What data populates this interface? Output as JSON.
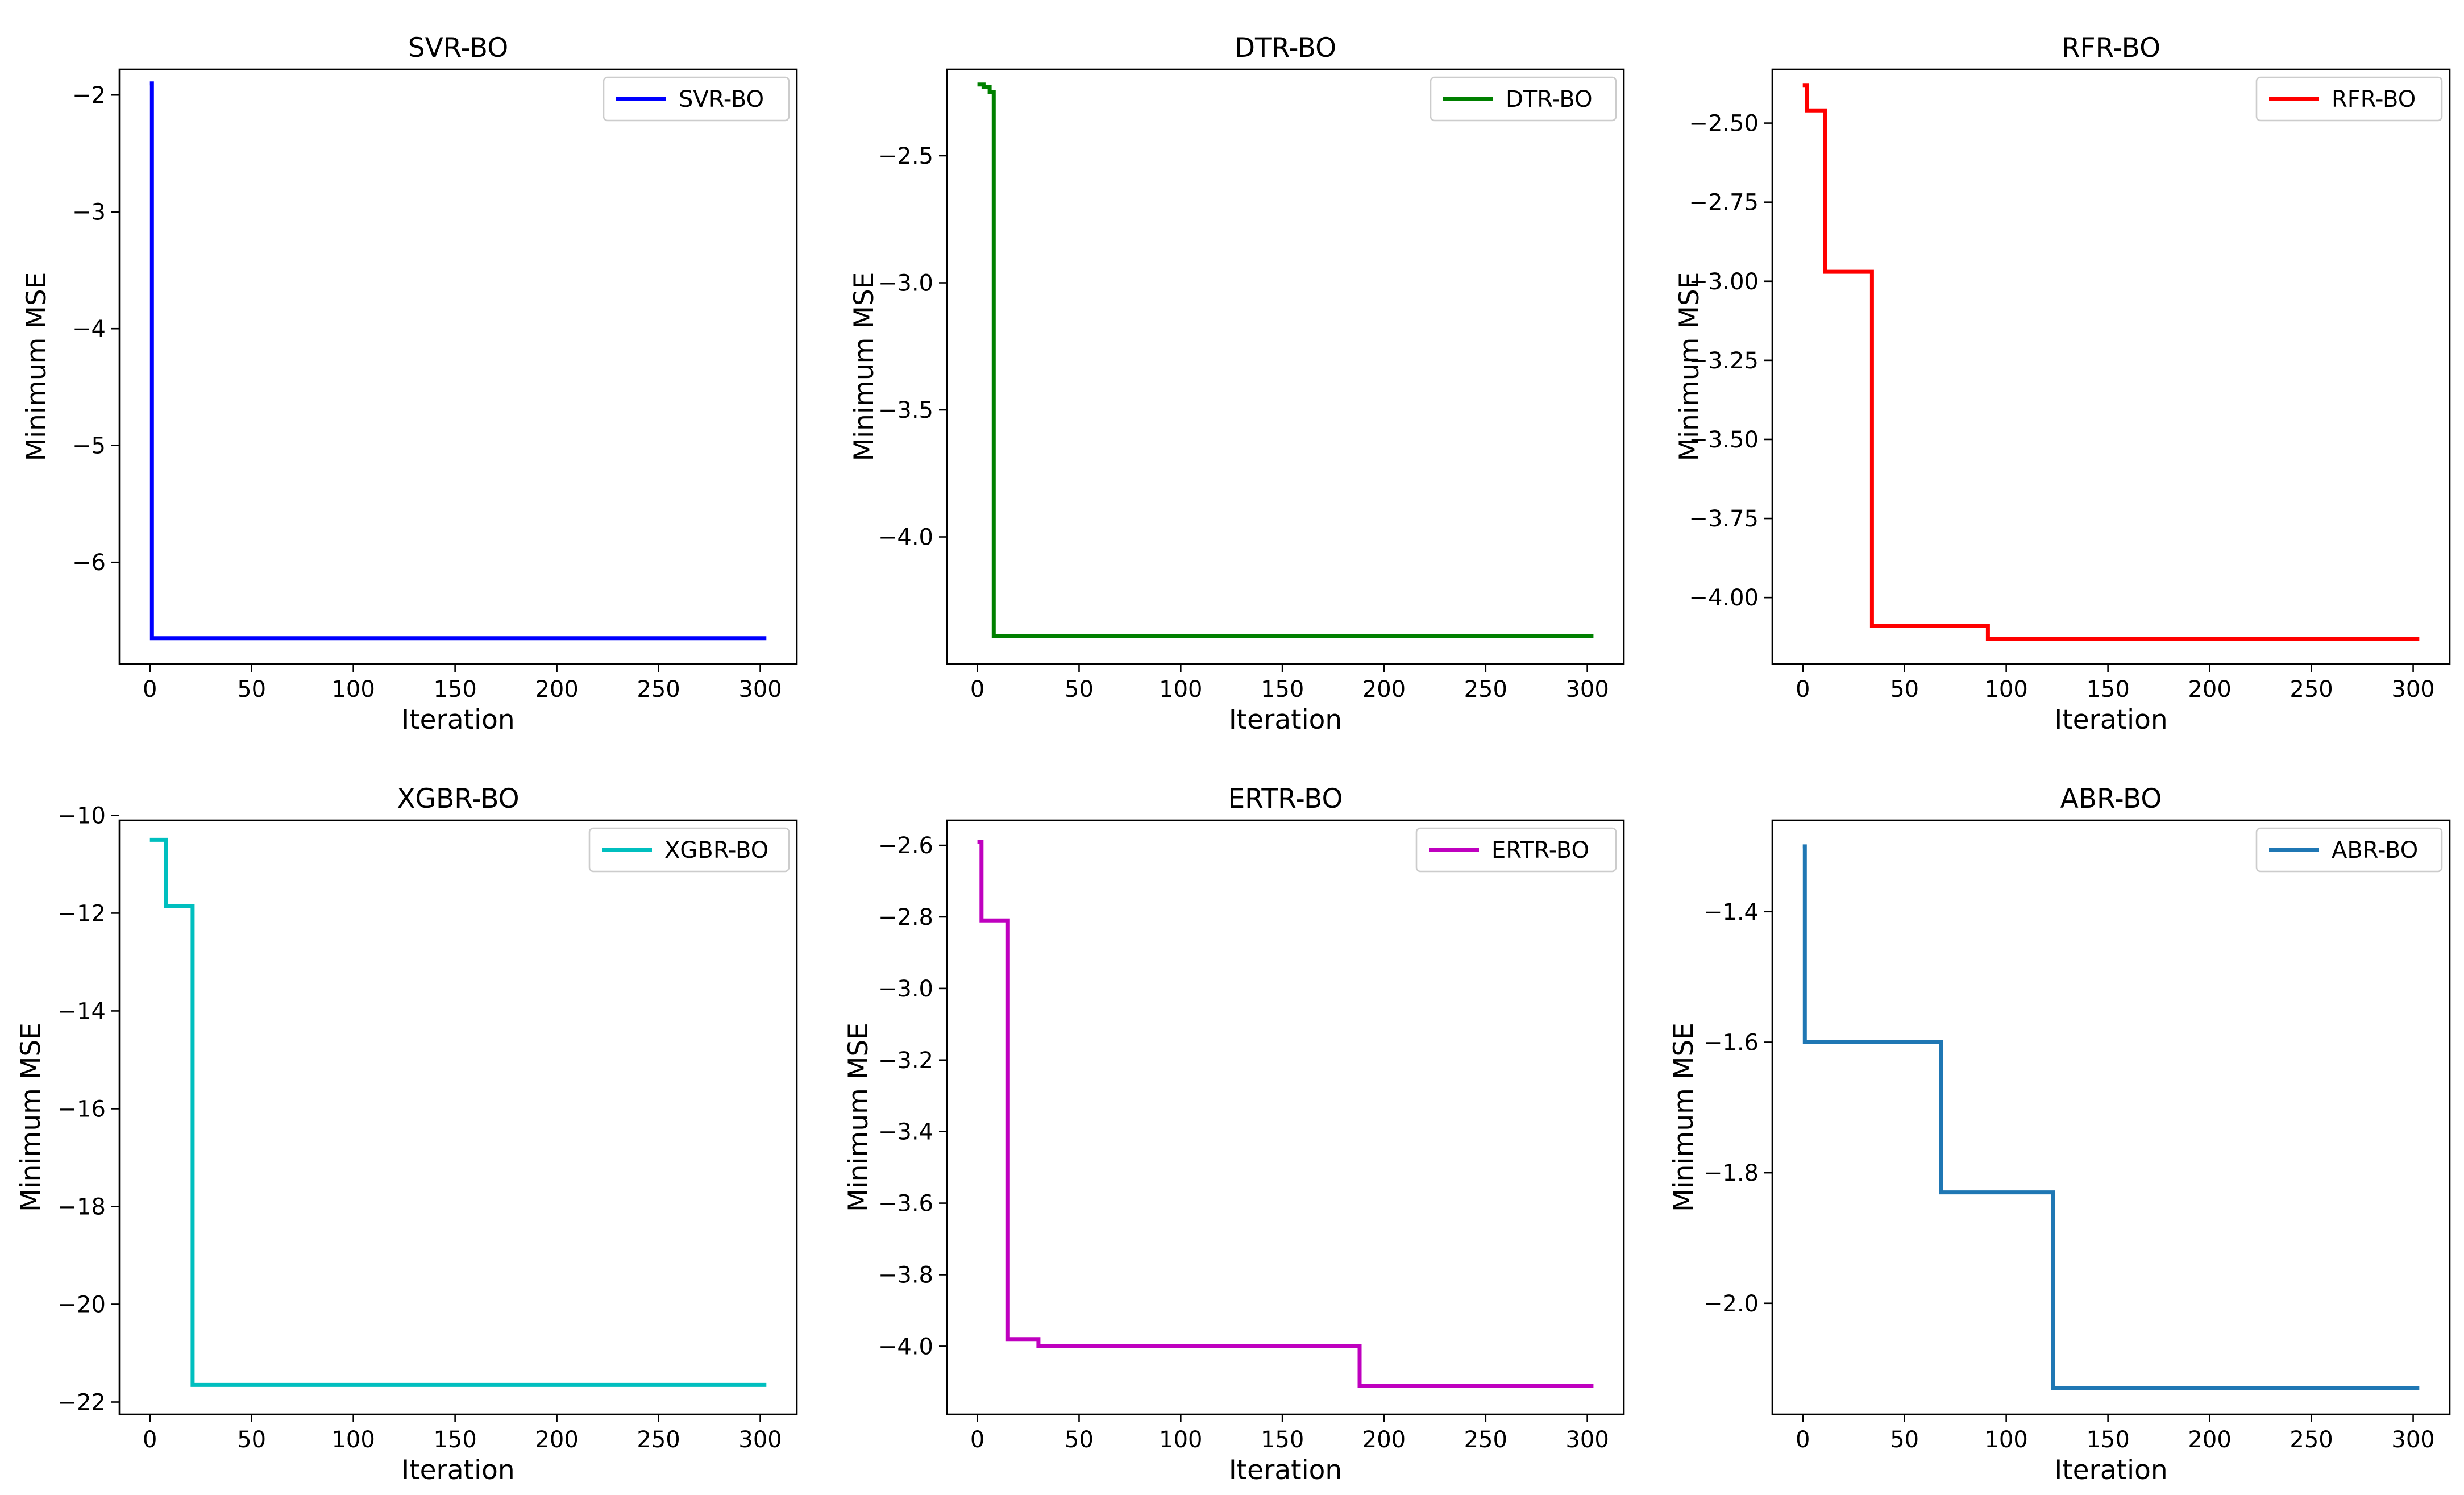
{
  "chart_data": [
    {
      "type": "line",
      "title": "SVR-BO",
      "xlabel": "Iteration",
      "ylabel": "Minimum MSE",
      "xlim": [
        -15,
        318
      ],
      "ylim": [
        -6.87,
        -1.78
      ],
      "xticks": [
        0,
        50,
        100,
        150,
        200,
        250,
        300
      ],
      "yticks": [
        -6,
        -5,
        -4,
        -3,
        -2
      ],
      "ytick_labels": [
        "−6",
        "−5",
        "−4",
        "−3",
        "−2"
      ],
      "grid": false,
      "legend": "upper-right",
      "series": [
        {
          "name": "SVR-BO",
          "color": "#0000ff",
          "x": [
            0,
            1,
            1,
            303
          ],
          "y": [
            -1.9,
            -1.9,
            -6.65,
            -6.65
          ]
        }
      ]
    },
    {
      "type": "line",
      "title": "DTR-BO",
      "xlabel": "Iteration",
      "ylabel": "Minimum MSE",
      "xlim": [
        -15,
        318
      ],
      "ylim": [
        -4.5,
        -2.16
      ],
      "xticks": [
        0,
        50,
        100,
        150,
        200,
        250,
        300
      ],
      "yticks": [
        -4.0,
        -3.5,
        -3.0,
        -2.5
      ],
      "ytick_labels": [
        "−4.0",
        "−3.5",
        "−3.0",
        "−2.5"
      ],
      "grid": false,
      "legend": "upper-right",
      "series": [
        {
          "name": "DTR-BO",
          "color": "#008000",
          "x": [
            0,
            3,
            3,
            6,
            6,
            8,
            8,
            303
          ],
          "y": [
            -2.22,
            -2.22,
            -2.23,
            -2.23,
            -2.25,
            -2.25,
            -4.39,
            -4.39
          ]
        }
      ]
    },
    {
      "type": "line",
      "title": "RFR-BO",
      "xlabel": "Iteration",
      "ylabel": "Minimum MSE",
      "xlim": [
        -15,
        318
      ],
      "ylim": [
        -4.21,
        -2.33
      ],
      "xticks": [
        0,
        50,
        100,
        150,
        200,
        250,
        300
      ],
      "yticks": [
        -4.0,
        -3.75,
        -3.5,
        -3.25,
        -3.0,
        -2.75,
        -2.5
      ],
      "ytick_labels": [
        "−4.00",
        "−3.75",
        "−3.50",
        "−3.25",
        "−3.00",
        "−2.75",
        "−2.50"
      ],
      "grid": false,
      "legend": "upper-right",
      "series": [
        {
          "name": "RFR-BO",
          "color": "#ff0000",
          "x": [
            0,
            2,
            2,
            11,
            11,
            34,
            34,
            91,
            91,
            303
          ],
          "y": [
            -2.38,
            -2.38,
            -2.46,
            -2.46,
            -2.97,
            -2.97,
            -4.09,
            -4.09,
            -4.13,
            -4.13
          ]
        }
      ]
    },
    {
      "type": "line",
      "title": "XGBR-BO",
      "xlabel": "Iteration",
      "ylabel": "Minimum MSE",
      "xlim": [
        -15,
        318
      ],
      "ylim": [
        -22.25,
        -10.1
      ],
      "xticks": [
        0,
        50,
        100,
        150,
        200,
        250,
        300
      ],
      "yticks": [
        -22,
        -20,
        -18,
        -16,
        -14,
        -12,
        -10
      ],
      "ytick_labels": [
        "−22",
        "−20",
        "−18",
        "−16",
        "−14",
        "−12",
        "−10"
      ],
      "grid": false,
      "legend": "upper-right",
      "series": [
        {
          "name": "XGBR-BO",
          "color": "#00bfbf",
          "x": [
            0,
            8,
            8,
            21,
            21,
            303
          ],
          "y": [
            -10.5,
            -10.5,
            -11.85,
            -11.85,
            -21.65,
            -21.65
          ]
        }
      ]
    },
    {
      "type": "line",
      "title": "ERTR-BO",
      "xlabel": "Iteration",
      "ylabel": "Minimum MSE",
      "xlim": [
        -15,
        318
      ],
      "ylim": [
        -4.19,
        -2.53
      ],
      "xticks": [
        0,
        50,
        100,
        150,
        200,
        250,
        300
      ],
      "yticks": [
        -4.0,
        -3.8,
        -3.6,
        -3.4,
        -3.2,
        -3.0,
        -2.8,
        -2.6
      ],
      "ytick_labels": [
        "−4.0",
        "−3.8",
        "−3.6",
        "−3.4",
        "−3.2",
        "−3.0",
        "−2.8",
        "−2.6"
      ],
      "grid": false,
      "legend": "upper-right",
      "series": [
        {
          "name": "ERTR-BO",
          "color": "#bf00bf",
          "x": [
            0,
            2,
            2,
            15,
            15,
            30,
            30,
            165,
            165,
            188,
            188,
            303
          ],
          "y": [
            -2.59,
            -2.59,
            -2.81,
            -2.81,
            -3.98,
            -3.98,
            -4.0,
            -4.0,
            -4.0,
            -4.0,
            -4.11,
            -4.11
          ]
        }
      ]
    },
    {
      "type": "line",
      "title": "ABR-BO",
      "xlabel": "Iteration",
      "ylabel": "Minimum MSE",
      "xlim": [
        -15,
        318
      ],
      "ylim": [
        -2.17,
        -1.26
      ],
      "xticks": [
        0,
        50,
        100,
        150,
        200,
        250,
        300
      ],
      "yticks": [
        -2.0,
        -1.8,
        -1.6,
        -1.4
      ],
      "ytick_labels": [
        "−2.0",
        "−1.8",
        "−1.6",
        "−1.4"
      ],
      "grid": false,
      "legend": "upper-right",
      "series": [
        {
          "name": "ABR-BO",
          "color": "#1f77b4",
          "x": [
            0,
            1,
            1,
            68,
            68,
            123,
            123,
            303
          ],
          "y": [
            -1.3,
            -1.3,
            -1.6,
            -1.6,
            -1.83,
            -1.83,
            -2.13,
            -2.13
          ]
        }
      ]
    }
  ]
}
